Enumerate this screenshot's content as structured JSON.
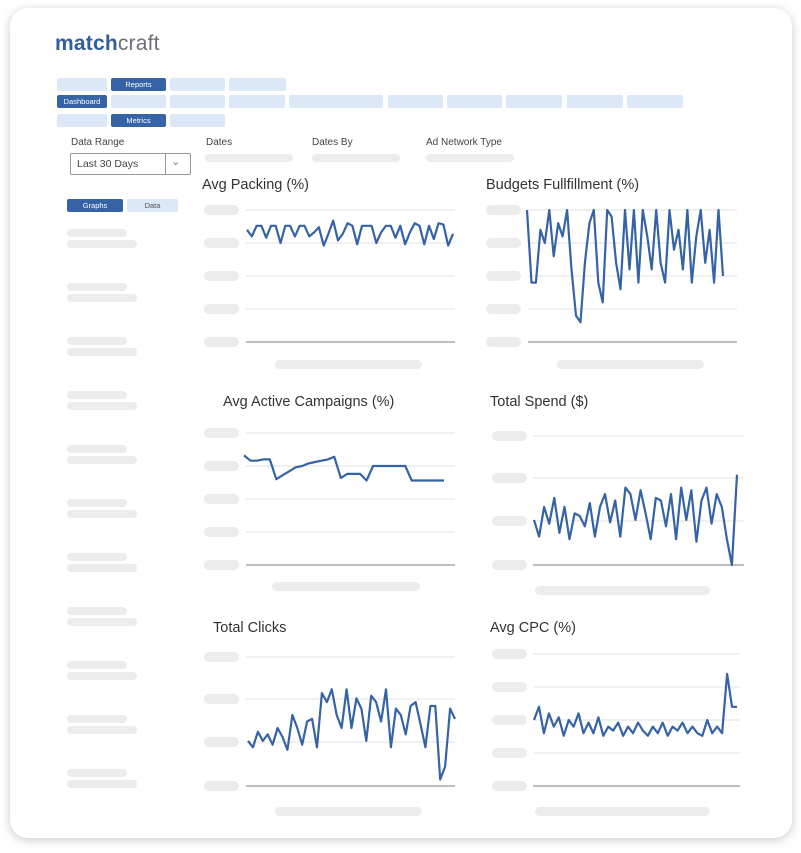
{
  "brand": {
    "part1": "match",
    "part2": "craft"
  },
  "nav": {
    "reports": "Reports",
    "dashboard": "Dashboard",
    "metrics": "Metrics"
  },
  "filters": {
    "data_range_label": "Data Range",
    "data_range_value": "Last 30 Days",
    "dates_label": "Dates",
    "dates_by_label": "Dates By",
    "ad_network_label": "Ad Network Type"
  },
  "view_tabs": {
    "graphs": "Graphs",
    "data": "Data"
  },
  "colors": {
    "accent": "#3563a6",
    "line": "#3563a6",
    "placeholder": "#dce8f7"
  },
  "chart_data": [
    {
      "type": "line",
      "title": "Avg Packing (%)",
      "ylim": [
        0,
        100
      ],
      "values": [
        85,
        80,
        88,
        88,
        79,
        88,
        88,
        75,
        88,
        88,
        80,
        88,
        88,
        80,
        83,
        87,
        73,
        82,
        92,
        77,
        82,
        90,
        88,
        74,
        88,
        88,
        88,
        75,
        83,
        88,
        88,
        79,
        88,
        74,
        83,
        90,
        88,
        74,
        88,
        78,
        90,
        89,
        73,
        82
      ]
    },
    {
      "type": "line",
      "title": "Budgets Fullfillment (%)",
      "ylim": [
        0,
        100
      ],
      "values": [
        100,
        45,
        45,
        85,
        75,
        100,
        65,
        90,
        80,
        100,
        55,
        20,
        15,
        60,
        90,
        100,
        45,
        30,
        100,
        95,
        60,
        40,
        100,
        55,
        100,
        45,
        100,
        80,
        55,
        100,
        60,
        45,
        100,
        70,
        85,
        55,
        100,
        45,
        80,
        100,
        60,
        85,
        45,
        100,
        50
      ]
    },
    {
      "type": "line",
      "title": "Avg Active Campaigns (%)",
      "ylim": [
        0,
        100
      ],
      "values": [
        83,
        79,
        79,
        80,
        80,
        65,
        68,
        71,
        74,
        75,
        77,
        78,
        79,
        80,
        82,
        66,
        69,
        69,
        69,
        64,
        75,
        75,
        75,
        75,
        75,
        75,
        64,
        64,
        64,
        64,
        64,
        64
      ]
    },
    {
      "type": "line",
      "title": "Total Spend ($)",
      "ylim": [
        0,
        100
      ],
      "values": [
        35,
        22,
        45,
        32,
        52,
        25,
        45,
        20,
        40,
        38,
        30,
        48,
        22,
        45,
        55,
        33,
        50,
        22,
        60,
        55,
        35,
        58,
        40,
        20,
        52,
        50,
        30,
        55,
        20,
        60,
        35,
        58,
        18,
        50,
        60,
        32,
        55,
        45,
        20,
        0,
        70
      ]
    },
    {
      "type": "line",
      "title": "Total Clicks",
      "ylim": [
        0,
        100
      ],
      "values": [
        35,
        30,
        42,
        35,
        40,
        32,
        45,
        38,
        28,
        55,
        45,
        32,
        50,
        52,
        30,
        72,
        65,
        75,
        55,
        45,
        75,
        45,
        68,
        60,
        35,
        70,
        65,
        50,
        75,
        30,
        60,
        55,
        40,
        62,
        65,
        48,
        30,
        62,
        62,
        5,
        15,
        60,
        52
      ]
    },
    {
      "type": "line",
      "title": "Avg CPC (%)",
      "ylim": [
        0,
        100
      ],
      "values": [
        50,
        60,
        40,
        55,
        45,
        52,
        38,
        50,
        45,
        55,
        40,
        48,
        40,
        52,
        38,
        45,
        42,
        48,
        38,
        45,
        40,
        48,
        42,
        38,
        45,
        40,
        48,
        38,
        45,
        42,
        48,
        40,
        45,
        40,
        38,
        50,
        40,
        45,
        40,
        85,
        60,
        60
      ]
    }
  ]
}
